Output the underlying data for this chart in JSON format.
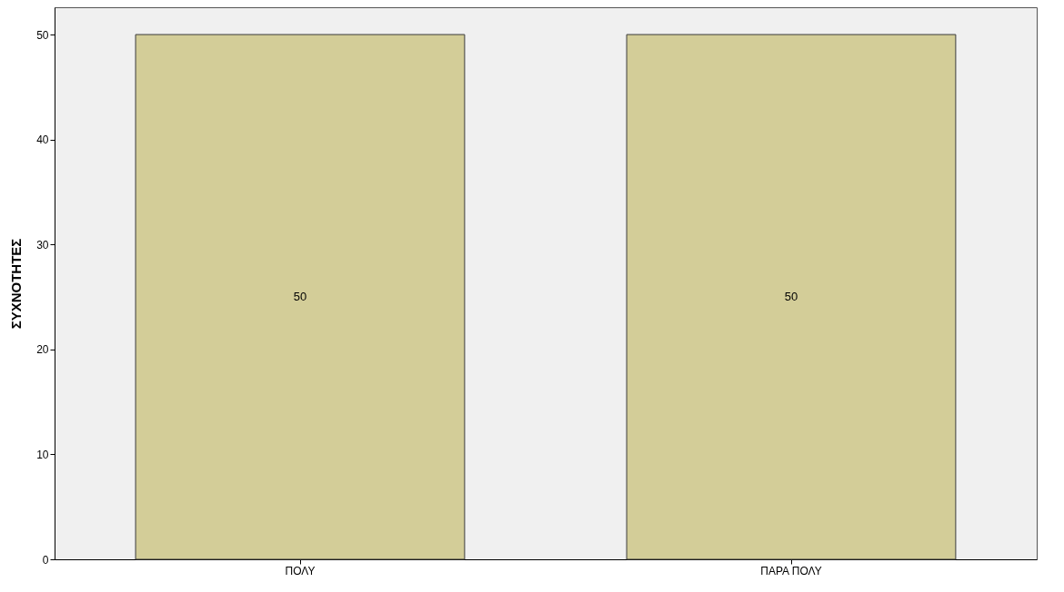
{
  "chart_data": {
    "type": "bar",
    "ylabel": "ΣΥΧΝΟΤΗΤΕΣ",
    "categories": [
      "ΠΟΛΥ",
      "ΠΑΡΑ ΠΟΛΥ"
    ],
    "values": [
      50,
      50
    ],
    "color": "#d3cd98",
    "ylim": [
      0,
      52.6
    ],
    "yticks": [
      0,
      10,
      20,
      30,
      40,
      50
    ],
    "data_labels": true,
    "grid": false
  }
}
